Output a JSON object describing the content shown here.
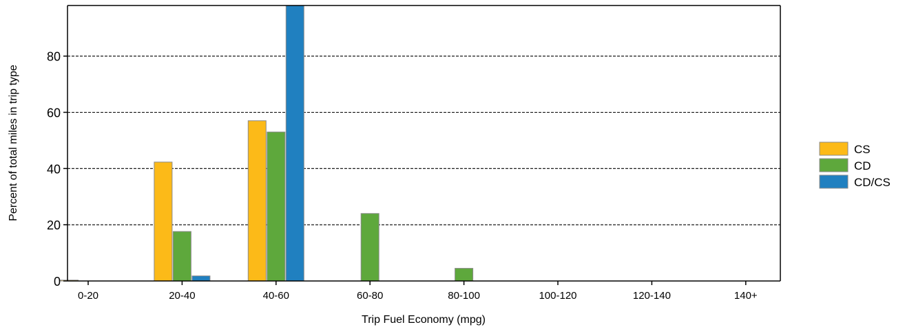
{
  "chart_data": {
    "type": "bar",
    "title": "",
    "xlabel": "Trip Fuel Economy (mpg)",
    "ylabel": "Percent of total miles in trip type",
    "categories": [
      "0-20",
      "20-40",
      "40-60",
      "60-80",
      "80-100",
      "100-120",
      "120-140",
      "140+"
    ],
    "ylim": [
      0,
      98
    ],
    "yticks": [
      0,
      20,
      40,
      60,
      80
    ],
    "grid": "horizontal dashed",
    "legend_position": "right",
    "series": [
      {
        "name": "CS",
        "color": "#FCBA18",
        "values": [
          0.3,
          42.3,
          57.0,
          0,
          0,
          0,
          0,
          0
        ]
      },
      {
        "name": "CD",
        "color": "#5EA83C",
        "values": [
          0,
          17.6,
          53.0,
          24.0,
          4.5,
          0,
          0,
          0
        ]
      },
      {
        "name": "CD/CS",
        "color": "#2080C0",
        "values": [
          0,
          1.8,
          98,
          0,
          0,
          0,
          0,
          0
        ]
      }
    ]
  }
}
